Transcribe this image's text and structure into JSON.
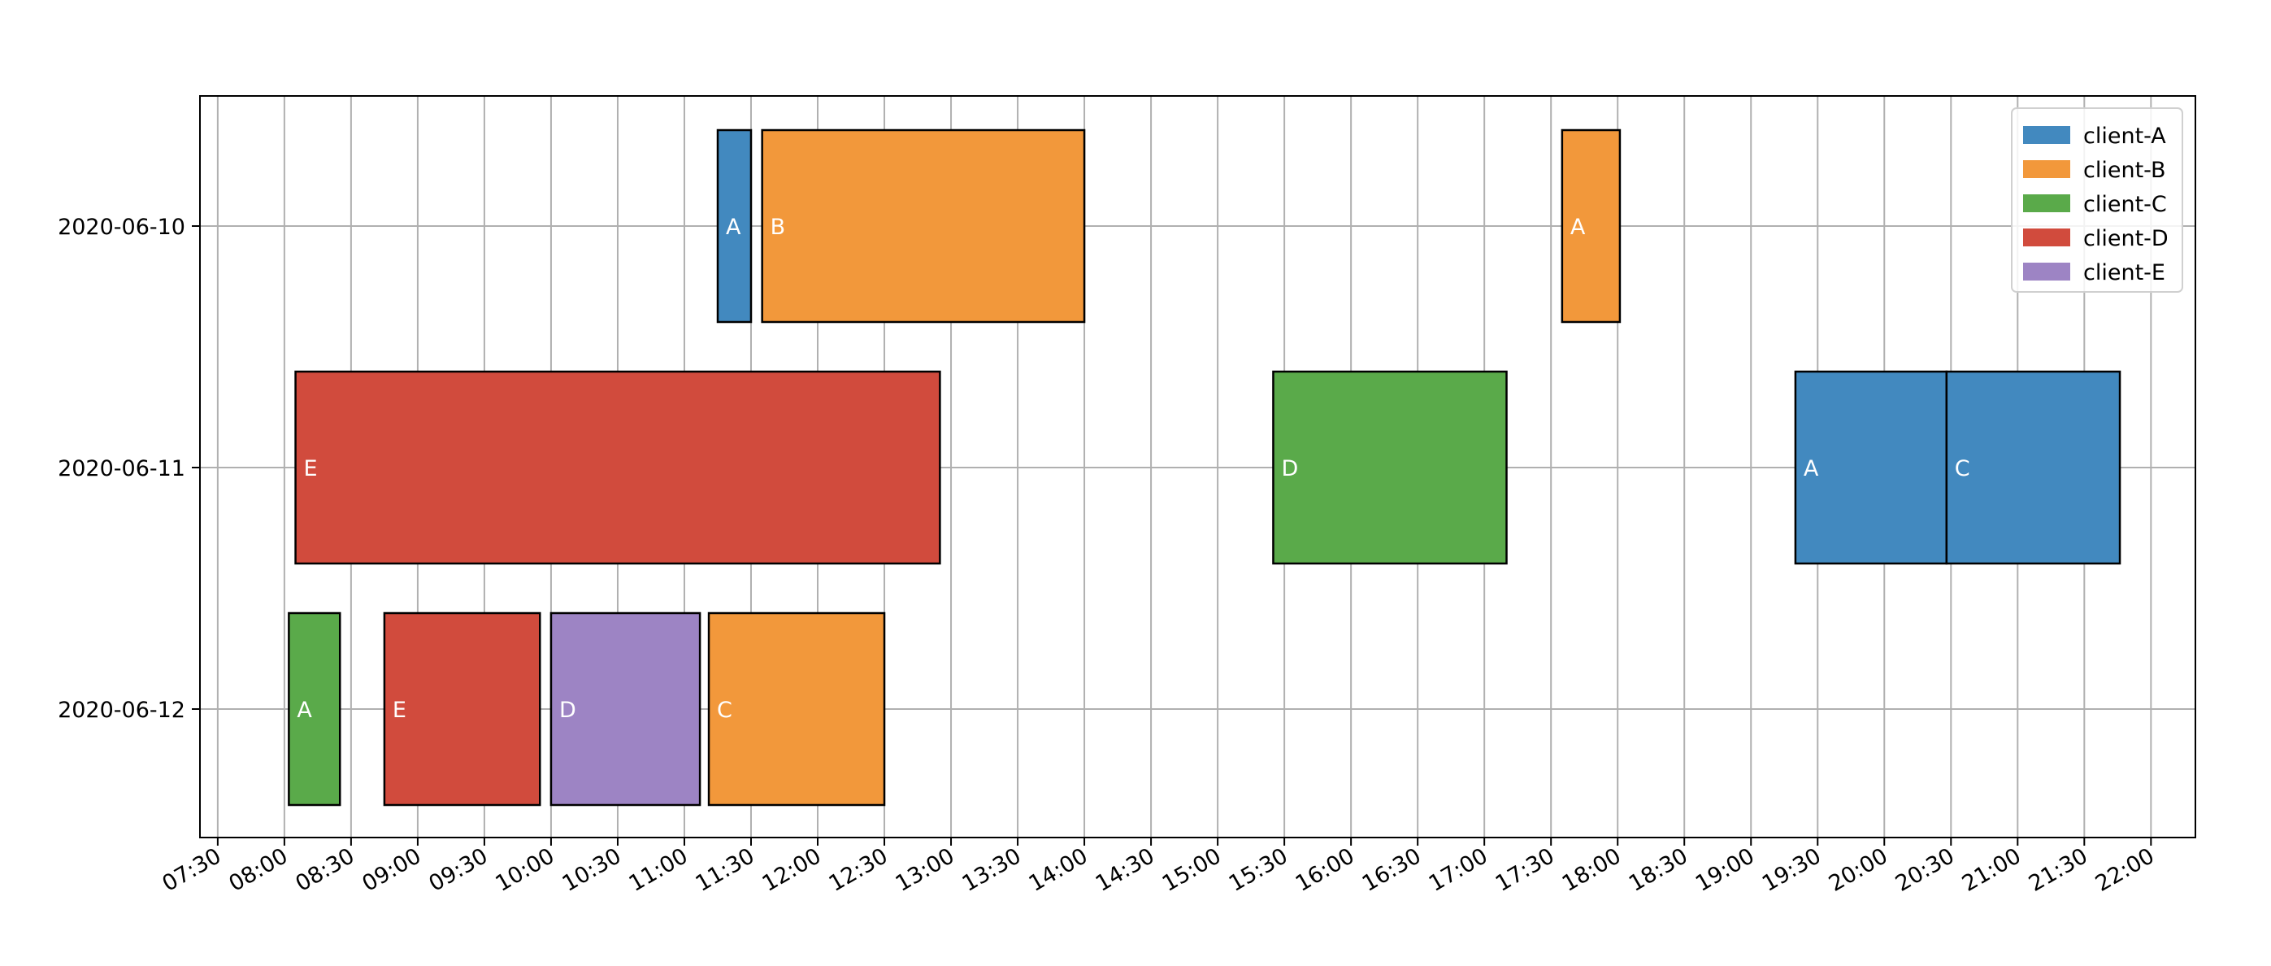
{
  "chart_data": {
    "type": "gantt",
    "title": "",
    "xlabel": "",
    "ylabel": "",
    "x_ticks": [
      "07:30",
      "08:00",
      "08:30",
      "09:00",
      "09:30",
      "10:00",
      "10:30",
      "11:00",
      "11:30",
      "12:00",
      "12:30",
      "13:00",
      "13:30",
      "14:00",
      "14:30",
      "15:00",
      "15:30",
      "16:00",
      "16:30",
      "17:00",
      "17:30",
      "18:00",
      "18:30",
      "19:00",
      "19:30",
      "20:00",
      "20:30",
      "21:00",
      "21:30",
      "22:00"
    ],
    "xlim": [
      "07:22",
      "22:20"
    ],
    "rows": [
      "2020-06-10",
      "2020-06-11",
      "2020-06-12"
    ],
    "grid": true,
    "legend_position": "top-right",
    "series": [
      {
        "name": "client-A",
        "color": "#4289bf"
      },
      {
        "name": "client-B",
        "color": "#f2983b"
      },
      {
        "name": "client-C",
        "color": "#5aaa4a"
      },
      {
        "name": "client-D",
        "color": "#d14b3d"
      },
      {
        "name": "client-E",
        "color": "#9d84c4"
      }
    ],
    "tasks": [
      {
        "row": "2020-06-10",
        "client": "client-A",
        "label": "A",
        "start": "11:15",
        "end": "11:30"
      },
      {
        "row": "2020-06-10",
        "client": "client-B",
        "label": "B",
        "start": "11:35",
        "end": "14:00"
      },
      {
        "row": "2020-06-10",
        "client": "client-B",
        "label": "A",
        "start": "17:35",
        "end": "18:01"
      },
      {
        "row": "2020-06-11",
        "client": "client-D",
        "label": "E",
        "start": "08:05",
        "end": "12:55"
      },
      {
        "row": "2020-06-11",
        "client": "client-C",
        "label": "D",
        "start": "15:25",
        "end": "17:10"
      },
      {
        "row": "2020-06-11",
        "client": "client-A",
        "label": "A",
        "start": "19:20",
        "end": "20:28"
      },
      {
        "row": "2020-06-11",
        "client": "client-A",
        "label": "C",
        "start": "20:28",
        "end": "21:46"
      },
      {
        "row": "2020-06-12",
        "client": "client-C",
        "label": "A",
        "start": "08:02",
        "end": "08:25"
      },
      {
        "row": "2020-06-12",
        "client": "client-D",
        "label": "E",
        "start": "08:45",
        "end": "09:55"
      },
      {
        "row": "2020-06-12",
        "client": "client-E",
        "label": "D",
        "start": "10:00",
        "end": "11:07"
      },
      {
        "row": "2020-06-12",
        "client": "client-B",
        "label": "C",
        "start": "11:11",
        "end": "12:30"
      }
    ]
  }
}
